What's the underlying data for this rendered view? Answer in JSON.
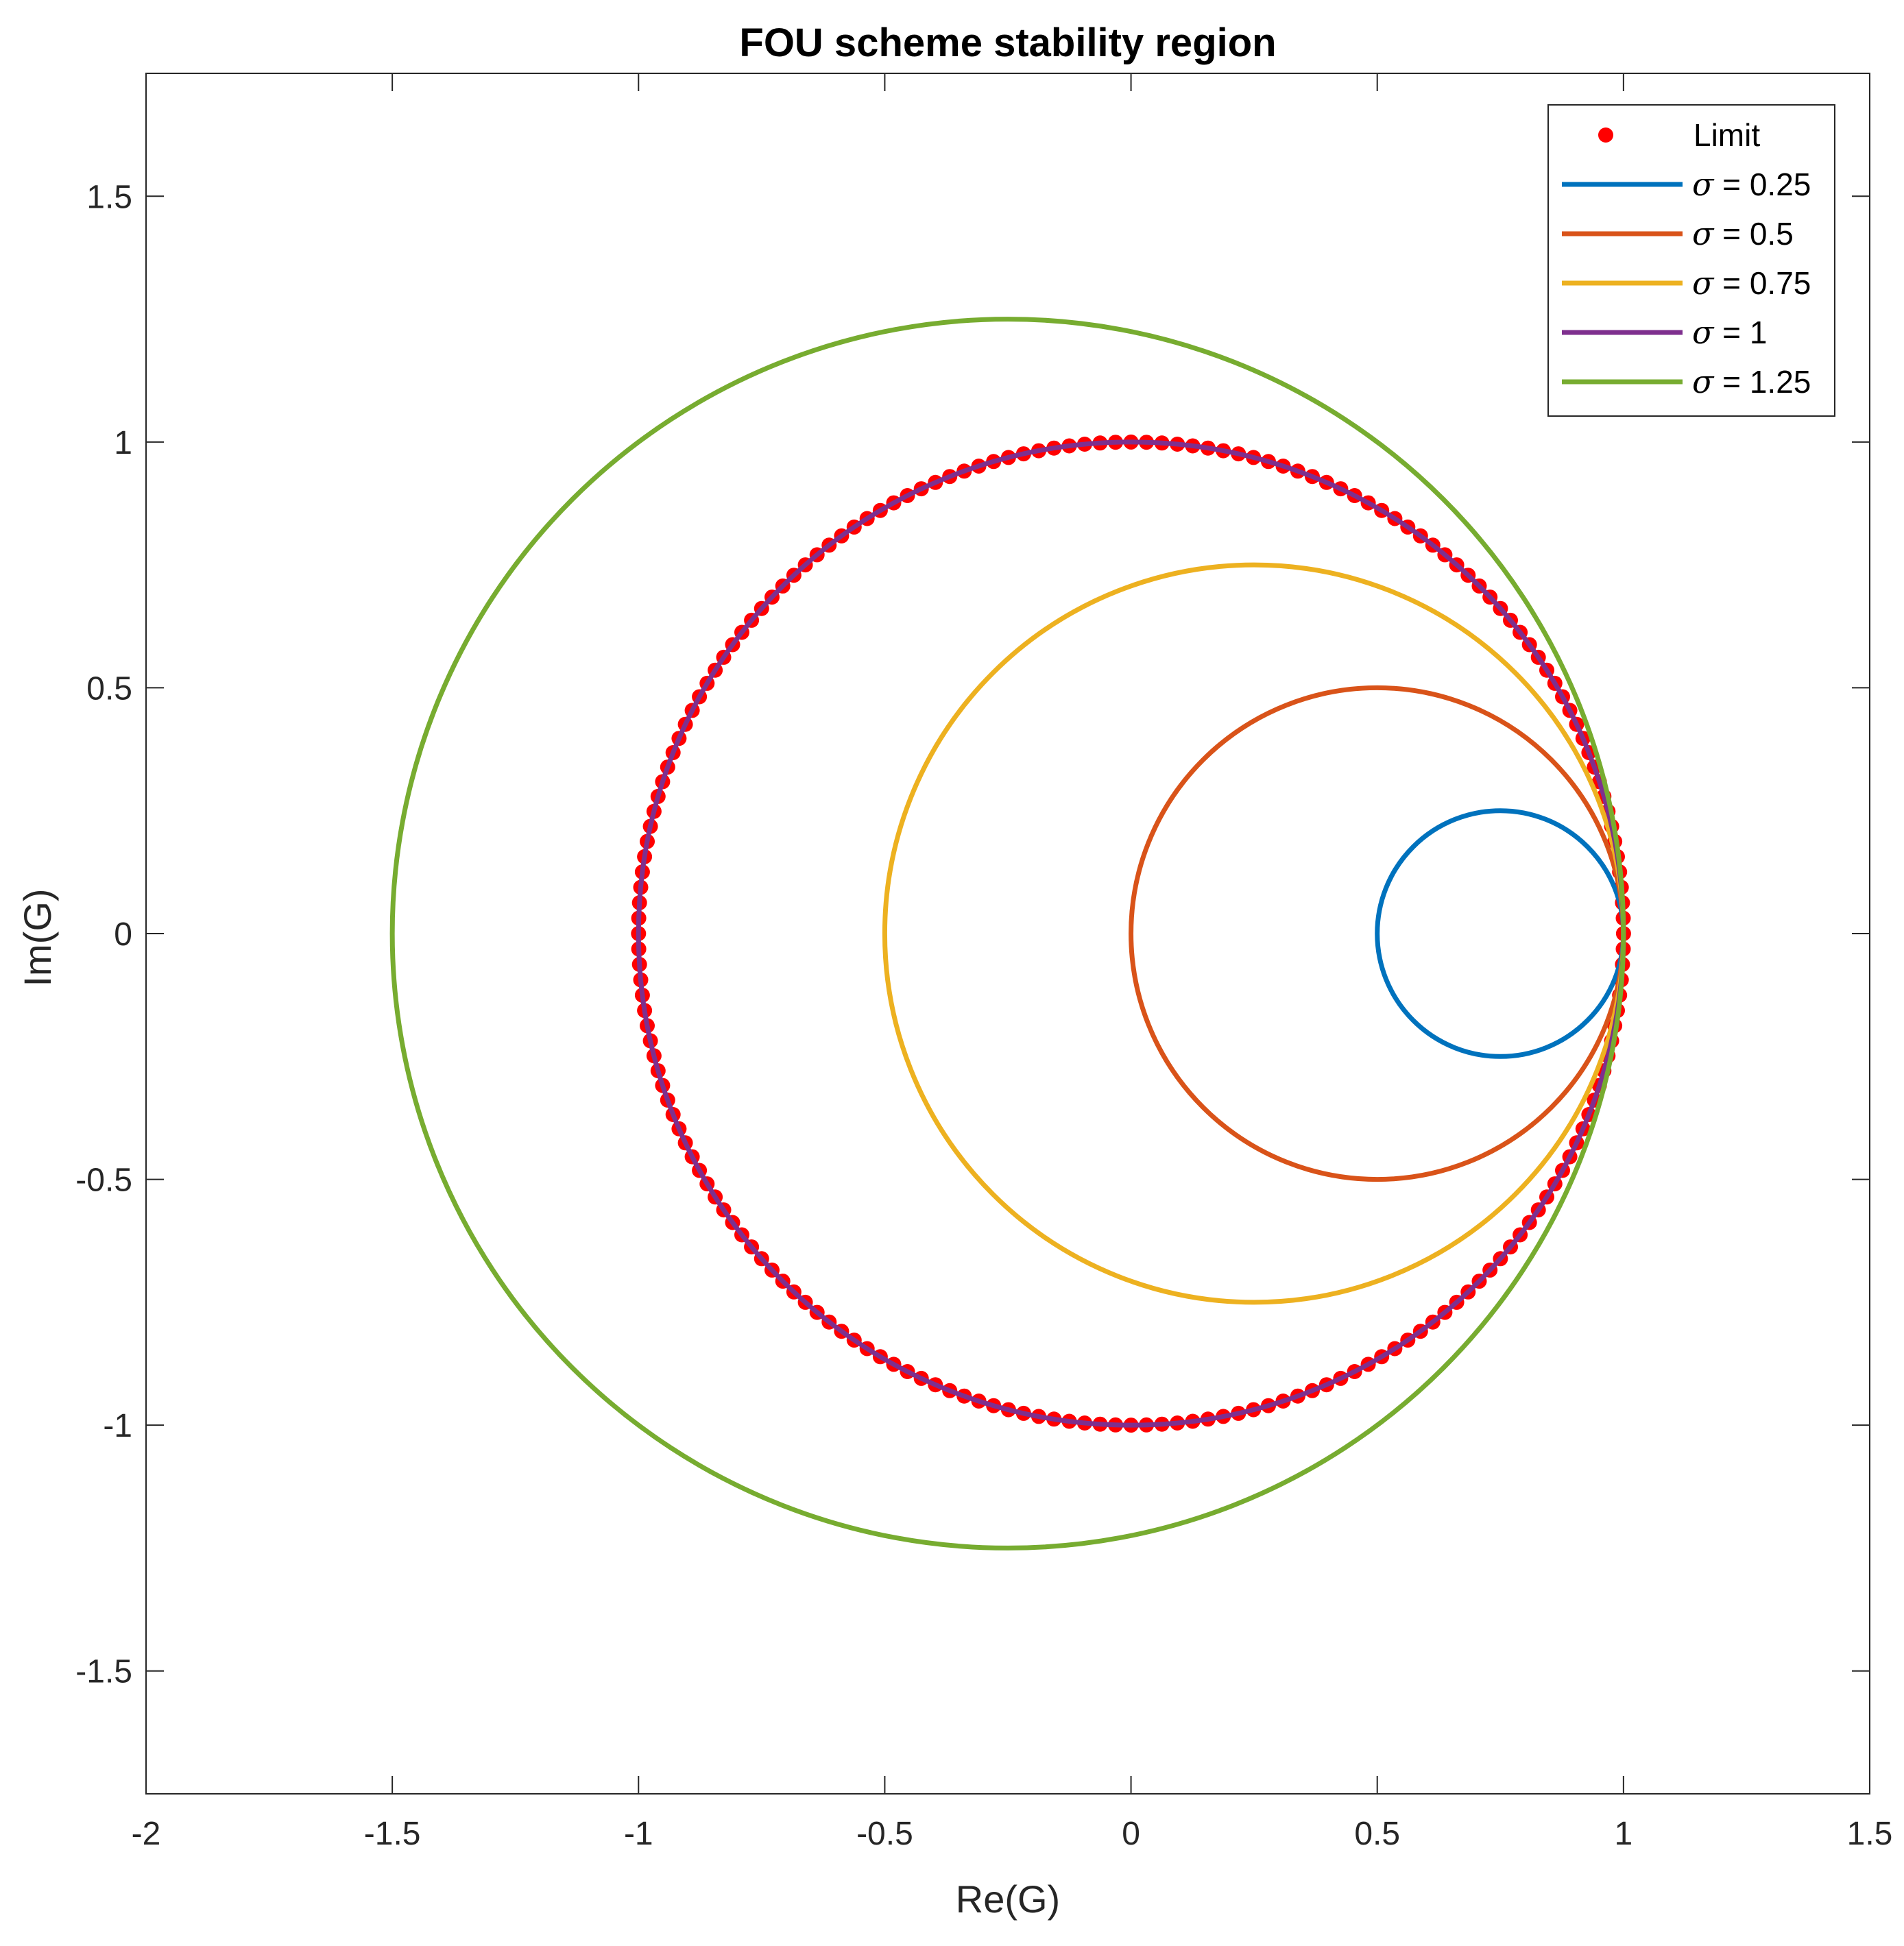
{
  "chart_data": {
    "type": "line",
    "title": "FOU scheme stability region",
    "xlabel": "Re(G)",
    "ylabel": "Im(G)",
    "xlim": [
      -2,
      1.5
    ],
    "ylim": [
      -1.75,
      1.75
    ],
    "xticks": [
      -2,
      -1.5,
      -1,
      -0.5,
      0,
      0.5,
      1,
      1.5
    ],
    "xtick_labels": [
      "-2",
      "-1.5",
      "-1",
      "-0.5",
      "0",
      "0.5",
      "1",
      "1.5"
    ],
    "yticks": [
      -1.5,
      -1,
      -0.5,
      0,
      0.5,
      1,
      1.5
    ],
    "ytick_labels": [
      "-1.5",
      "-1",
      "-0.5",
      "0",
      "0.5",
      "1",
      "1.5"
    ],
    "grid": false,
    "legend_position": "top-right",
    "series": [
      {
        "name": "Limit",
        "kind": "markers",
        "color": "#FF0000",
        "shape": "circle",
        "center": [
          0,
          0
        ],
        "radius": 1,
        "point_count": 200
      },
      {
        "name_symbol": "σ",
        "name_value": " = 0.25",
        "kind": "line",
        "color": "#0072BD",
        "center": [
          0.75,
          0
        ],
        "radius": 0.25
      },
      {
        "name_symbol": "σ",
        "name_value": " = 0.5",
        "kind": "line",
        "color": "#D95319",
        "center": [
          0.5,
          0
        ],
        "radius": 0.5
      },
      {
        "name_symbol": "σ",
        "name_value": " = 0.75",
        "kind": "line",
        "color": "#EDB120",
        "center": [
          0.25,
          0
        ],
        "radius": 0.75
      },
      {
        "name_symbol": "σ",
        "name_value": " = 1",
        "kind": "line",
        "color": "#7E2F8E",
        "center": [
          0,
          0
        ],
        "radius": 1
      },
      {
        "name_symbol": "σ",
        "name_value": " = 1.25",
        "kind": "line",
        "color": "#77AC30",
        "center": [
          -0.25,
          0
        ],
        "radius": 1.25
      }
    ]
  }
}
